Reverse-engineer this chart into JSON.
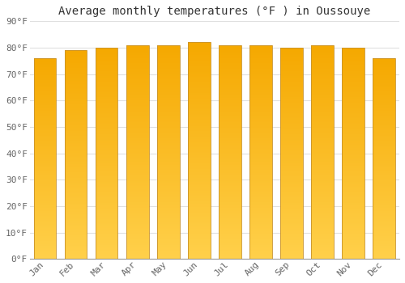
{
  "months": [
    "Jan",
    "Feb",
    "Mar",
    "Apr",
    "May",
    "Jun",
    "Jul",
    "Aug",
    "Sep",
    "Oct",
    "Nov",
    "Dec"
  ],
  "values": [
    76,
    79,
    80,
    81,
    81,
    82,
    81,
    81,
    80,
    81,
    80,
    76
  ],
  "title": "Average monthly temperatures (°F ) in Oussouye",
  "ylim": [
    0,
    90
  ],
  "yticks": [
    0,
    10,
    20,
    30,
    40,
    50,
    60,
    70,
    80,
    90
  ],
  "ytick_labels": [
    "0°F",
    "10°F",
    "20°F",
    "30°F",
    "40°F",
    "50°F",
    "60°F",
    "70°F",
    "80°F",
    "90°F"
  ],
  "bar_color_bottom": "#FFD04A",
  "bar_color_top": "#F5A800",
  "background_color": "#FFFFFF",
  "grid_color": "#E0E0E0",
  "bar_edge_color": "#C8922A",
  "title_fontsize": 10,
  "tick_fontsize": 8,
  "bar_width": 0.72
}
